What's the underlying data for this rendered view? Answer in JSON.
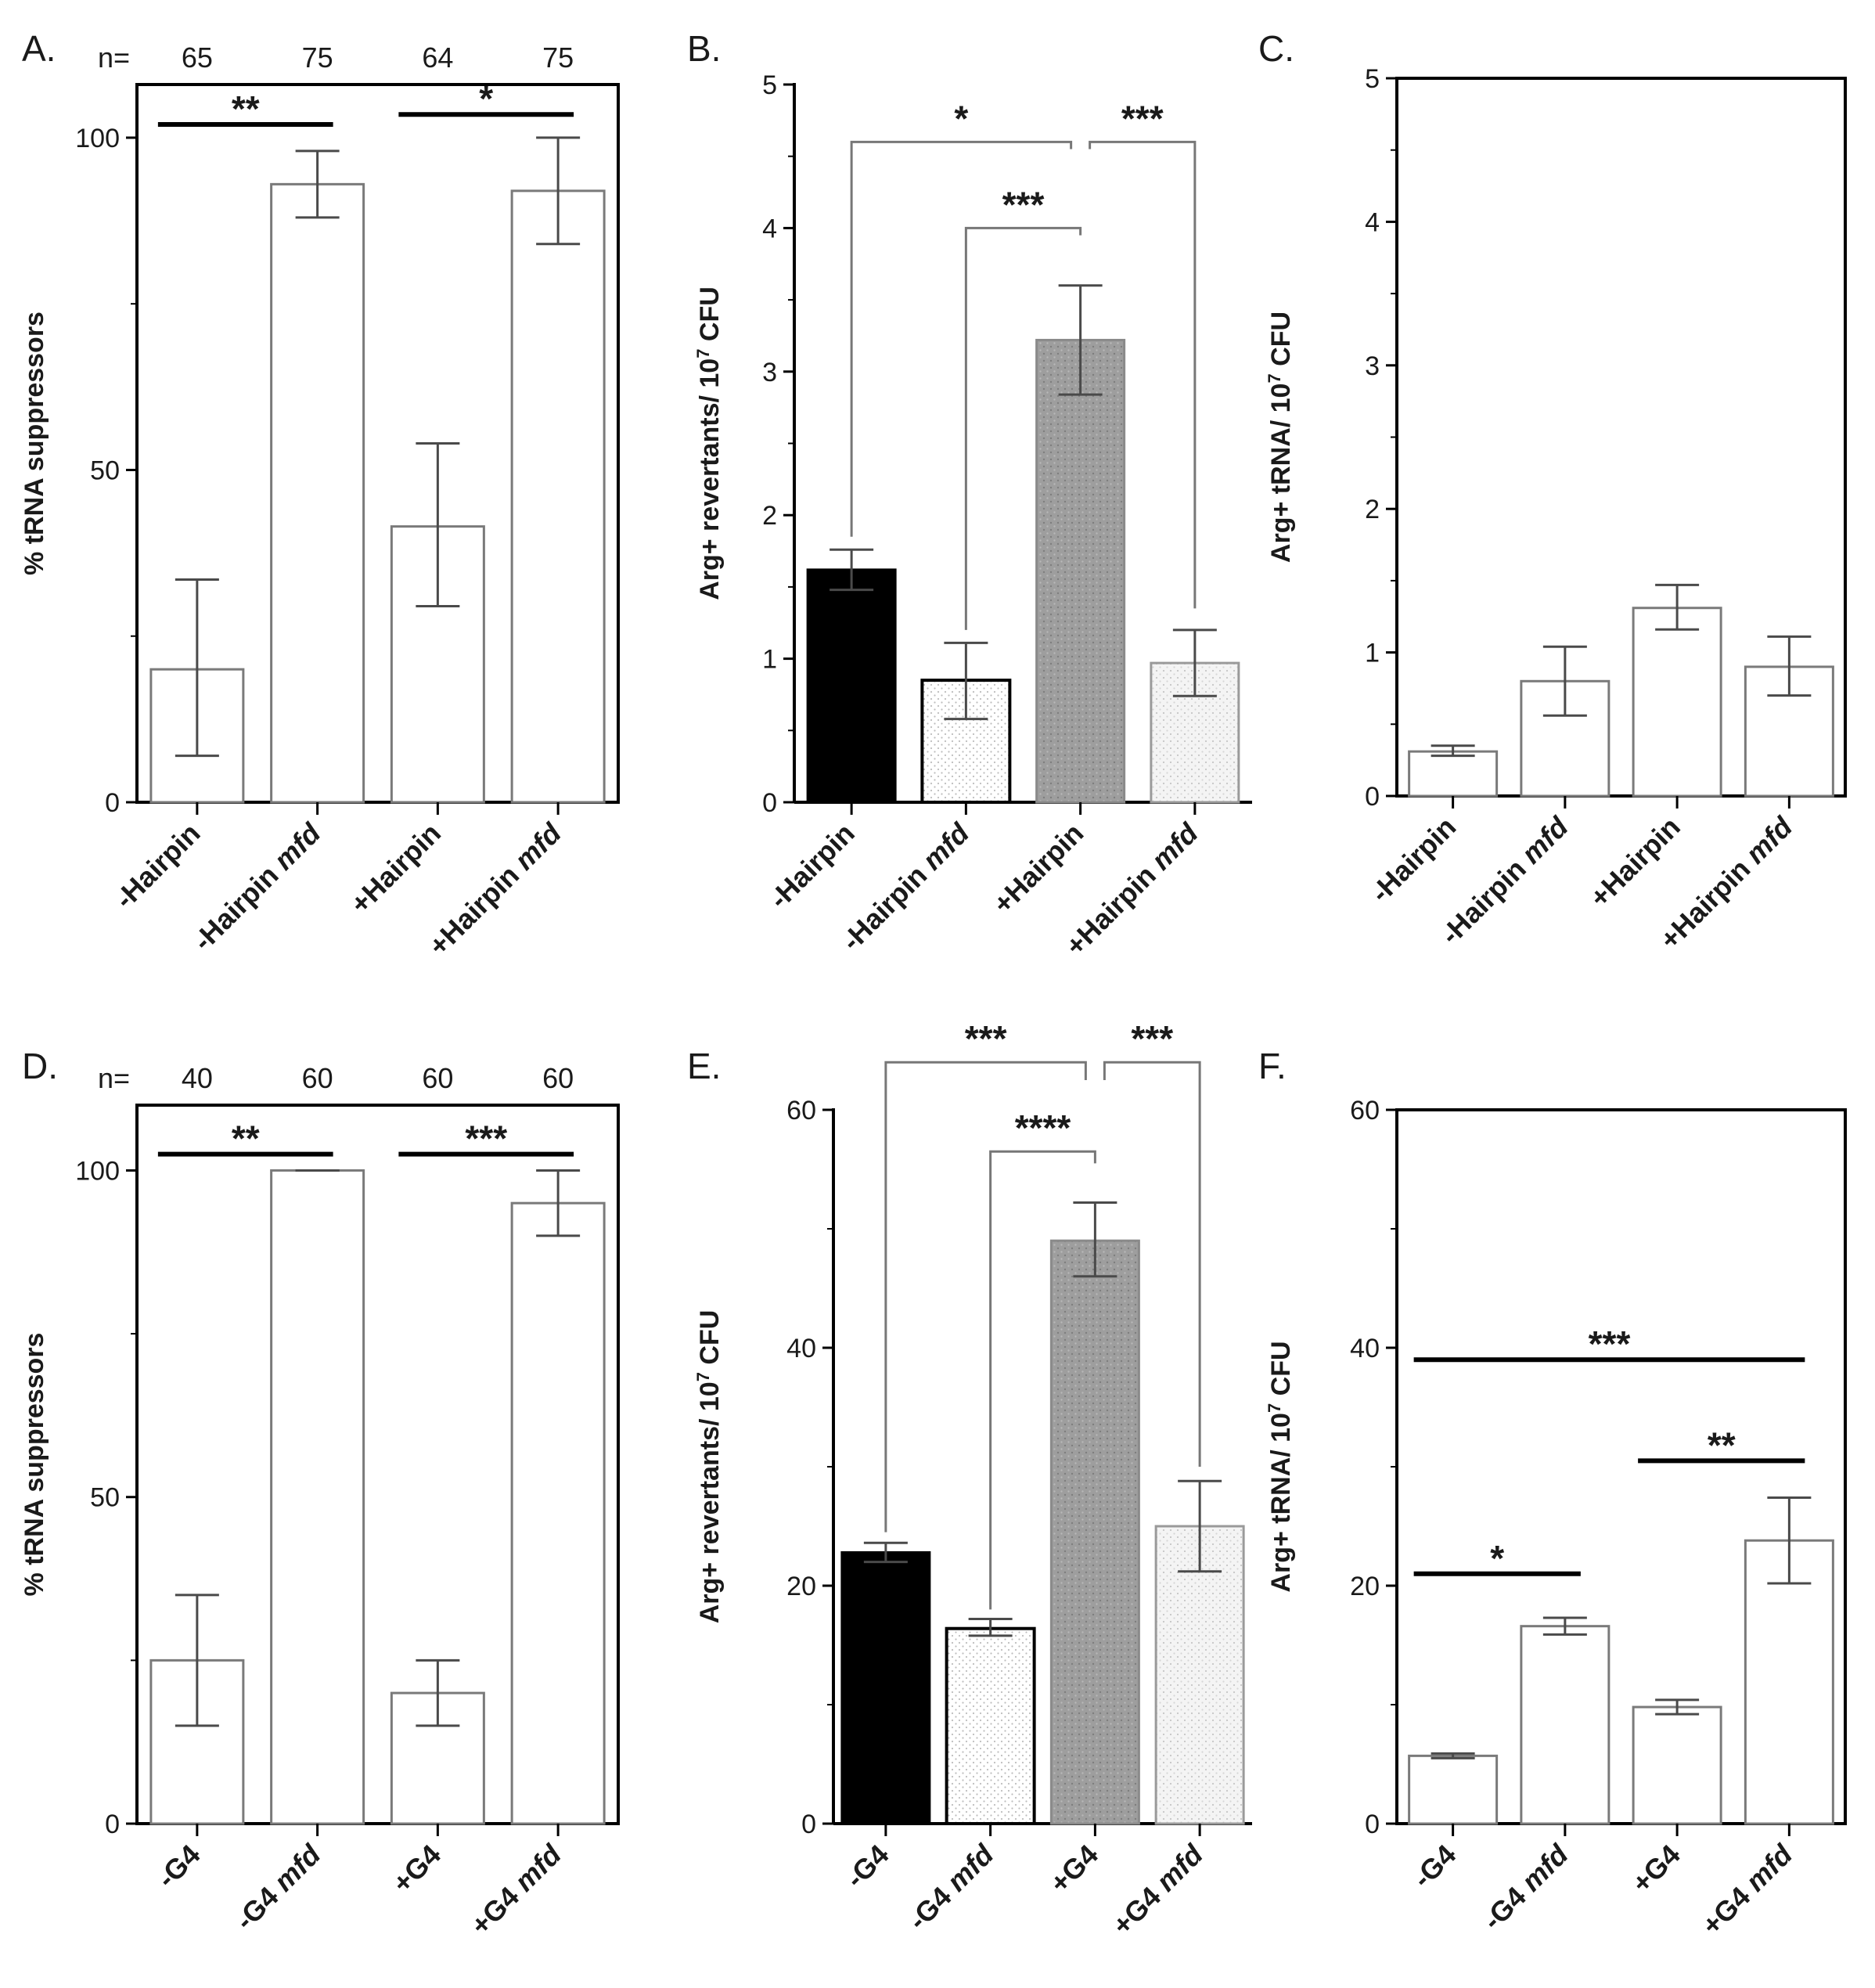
{
  "chart_data": [
    {
      "panel": "A.",
      "type": "bar",
      "categories": [
        {
          "parts": [
            {
              "text": "-Hairpin",
              "italic": false
            }
          ]
        },
        {
          "parts": [
            {
              "text": "-Hairpin ",
              "italic": false
            },
            {
              "text": "mfd",
              "italic": true
            }
          ]
        },
        {
          "parts": [
            {
              "text": "+Hairpin",
              "italic": false
            }
          ]
        },
        {
          "parts": [
            {
              "text": "+Hairpin ",
              "italic": false
            },
            {
              "text": "mfd",
              "italic": true
            }
          ]
        }
      ],
      "values": [
        20,
        93,
        41.5,
        92
      ],
      "errors": [
        [
          7,
          33.5
        ],
        [
          88,
          98
        ],
        [
          29.5,
          54
        ],
        [
          84,
          100
        ]
      ],
      "fills": [
        "white",
        "white",
        "white",
        "white"
      ],
      "n_prefix": "n=",
      "n_values": [
        "65",
        "75",
        "64",
        "75"
      ],
      "ylabel": "% tRNA suppressors",
      "ylim": [
        0,
        108
      ],
      "yticks": [
        0,
        50,
        100
      ],
      "frame": "box",
      "significance": [
        {
          "from": 0,
          "to": 1,
          "y": 102,
          "label": "**",
          "style": "line"
        },
        {
          "from": 2,
          "to": 3,
          "y": 103.5,
          "label": "*",
          "style": "line"
        }
      ]
    },
    {
      "panel": "B.",
      "type": "bar",
      "categories": [
        {
          "parts": [
            {
              "text": "-Hairpin",
              "italic": false
            }
          ]
        },
        {
          "parts": [
            {
              "text": "-Hairpin ",
              "italic": false
            },
            {
              "text": "mfd",
              "italic": true
            }
          ]
        },
        {
          "parts": [
            {
              "text": "+Hairpin",
              "italic": false
            }
          ]
        },
        {
          "parts": [
            {
              "text": "+Hairpin ",
              "italic": false
            },
            {
              "text": "mfd",
              "italic": true
            }
          ]
        }
      ],
      "values": [
        1.62,
        0.85,
        3.22,
        0.97
      ],
      "errors": [
        [
          1.48,
          1.76
        ],
        [
          0.58,
          1.11
        ],
        [
          2.84,
          3.6
        ],
        [
          0.74,
          1.2
        ]
      ],
      "fills": [
        "black",
        "dotted-white",
        "gray",
        "dotted-light"
      ],
      "ylabel_parts": [
        {
          "text": "Arg+ revertants/ 10"
        },
        {
          "text": "7",
          "sup": true
        },
        {
          "text": " CFU"
        }
      ],
      "ylim": [
        0,
        5
      ],
      "yticks": [
        0,
        1,
        2,
        3,
        4,
        5
      ],
      "frame": "axes",
      "significance": [
        {
          "from": 0,
          "to": 2,
          "y": 4.6,
          "label": "*",
          "style": "bracket",
          "leg_ends": [
            1.85,
            4.55
          ]
        },
        {
          "from": 1,
          "to": 2,
          "y": 4.0,
          "label": "***",
          "style": "bracket",
          "leg_ends": [
            1.2,
            3.95
          ]
        },
        {
          "from": 2,
          "to": 3,
          "y": 4.6,
          "label": "***",
          "style": "bracket",
          "leg_ends": [
            4.55,
            1.35
          ]
        }
      ]
    },
    {
      "panel": "C.",
      "type": "bar",
      "categories": [
        {
          "parts": [
            {
              "text": "-Hairpin",
              "italic": false
            }
          ]
        },
        {
          "parts": [
            {
              "text": "-Hairpin ",
              "italic": false
            },
            {
              "text": "mfd",
              "italic": true
            }
          ]
        },
        {
          "parts": [
            {
              "text": "+Hairpin",
              "italic": false
            }
          ]
        },
        {
          "parts": [
            {
              "text": "+Hairpin ",
              "italic": false
            },
            {
              "text": "mfd",
              "italic": true
            }
          ]
        }
      ],
      "values": [
        0.31,
        0.8,
        1.31,
        0.9
      ],
      "errors": [
        [
          0.28,
          0.35
        ],
        [
          0.56,
          1.04
        ],
        [
          1.16,
          1.47
        ],
        [
          0.7,
          1.11
        ]
      ],
      "fills": [
        "white",
        "white",
        "white",
        "white"
      ],
      "ylabel_parts": [
        {
          "text": "Arg+ tRNA/ 10"
        },
        {
          "text": "7",
          "sup": true
        },
        {
          "text": " CFU"
        }
      ],
      "ylim": [
        0,
        5
      ],
      "yticks": [
        0,
        1,
        2,
        3,
        4,
        5
      ],
      "frame": "box",
      "significance": []
    },
    {
      "panel": "D.",
      "type": "bar",
      "categories": [
        {
          "parts": [
            {
              "text": "-G4",
              "italic": false
            }
          ]
        },
        {
          "parts": [
            {
              "text": "-G4 ",
              "italic": false
            },
            {
              "text": "mfd",
              "italic": true
            }
          ]
        },
        {
          "parts": [
            {
              "text": "+G4",
              "italic": false
            }
          ]
        },
        {
          "parts": [
            {
              "text": "+G4 ",
              "italic": false
            },
            {
              "text": "mfd",
              "italic": true
            }
          ]
        }
      ],
      "values": [
        25,
        100,
        20,
        95
      ],
      "errors": [
        [
          15,
          35
        ],
        [
          100,
          100
        ],
        [
          15,
          25
        ],
        [
          90,
          100
        ]
      ],
      "fills": [
        "white",
        "white",
        "white",
        "white"
      ],
      "n_prefix": "n=",
      "n_values": [
        "40",
        "60",
        "60",
        "60"
      ],
      "ylabel": "% tRNA suppressors",
      "ylim": [
        0,
        110
      ],
      "yticks": [
        0,
        50,
        100
      ],
      "frame": "box",
      "significance": [
        {
          "from": 0,
          "to": 1,
          "y": 102.5,
          "label": "**",
          "style": "line"
        },
        {
          "from": 2,
          "to": 3,
          "y": 102.5,
          "label": "***",
          "style": "line"
        }
      ]
    },
    {
      "panel": "E.",
      "type": "bar",
      "categories": [
        {
          "parts": [
            {
              "text": "-G4",
              "italic": false
            }
          ]
        },
        {
          "parts": [
            {
              "text": "-G4 ",
              "italic": false
            },
            {
              "text": "mfd",
              "italic": true
            }
          ]
        },
        {
          "parts": [
            {
              "text": "+G4",
              "italic": false
            }
          ]
        },
        {
          "parts": [
            {
              "text": "+G4 ",
              "italic": false
            },
            {
              "text": "mfd",
              "italic": true
            }
          ]
        }
      ],
      "values": [
        22.8,
        16.4,
        49,
        25
      ],
      "errors": [
        [
          22,
          23.6
        ],
        [
          15.8,
          17.2
        ],
        [
          46,
          52.2
        ],
        [
          21.2,
          28.8
        ]
      ],
      "fills": [
        "black",
        "dotted-white",
        "gray",
        "dotted-light"
      ],
      "ylabel_parts": [
        {
          "text": "Arg+ revertants/ 10"
        },
        {
          "text": "7",
          "sup": true
        },
        {
          "text": " CFU"
        }
      ],
      "ylim": [
        0,
        60
      ],
      "yticks": [
        0,
        20,
        40,
        60
      ],
      "frame": "axes",
      "significance": [
        {
          "from": 0,
          "to": 2,
          "y": 64,
          "label": "***",
          "style": "bracket",
          "leg_ends": [
            24.5,
            62.5
          ]
        },
        {
          "from": 1,
          "to": 2,
          "y": 56.5,
          "label": "****",
          "style": "bracket",
          "leg_ends": [
            18,
            55.5
          ]
        },
        {
          "from": 2,
          "to": 3,
          "y": 64,
          "label": "***",
          "style": "bracket",
          "leg_ends": [
            62.5,
            30
          ]
        }
      ]
    },
    {
      "panel": "F.",
      "type": "bar",
      "categories": [
        {
          "parts": [
            {
              "text": "-G4",
              "italic": false
            }
          ]
        },
        {
          "parts": [
            {
              "text": "-G4 ",
              "italic": false
            },
            {
              "text": "mfd",
              "italic": true
            }
          ]
        },
        {
          "parts": [
            {
              "text": "+G4",
              "italic": false
            }
          ]
        },
        {
          "parts": [
            {
              "text": "+G4 ",
              "italic": false
            },
            {
              "text": "mfd",
              "italic": true
            }
          ]
        }
      ],
      "values": [
        5.7,
        16.6,
        9.8,
        23.8
      ],
      "errors": [
        [
          5.5,
          5.9
        ],
        [
          15.9,
          17.3
        ],
        [
          9.2,
          10.4
        ],
        [
          20.2,
          27.4
        ]
      ],
      "fills": [
        "white",
        "white",
        "white",
        "white"
      ],
      "ylabel_parts": [
        {
          "text": "Arg+ tRNA/ 10"
        },
        {
          "text": "7",
          "sup": true
        },
        {
          "text": " CFU"
        }
      ],
      "ylim": [
        0,
        60
      ],
      "yticks": [
        0,
        20,
        40,
        60
      ],
      "frame": "box",
      "significance": [
        {
          "from": 0,
          "to": 3,
          "y": 39,
          "label": "***",
          "style": "line"
        },
        {
          "from": 2,
          "to": 3,
          "y": 30.5,
          "label": "**",
          "style": "line"
        },
        {
          "from": 0,
          "to": 1,
          "y": 21,
          "label": "*",
          "style": "line"
        }
      ]
    }
  ]
}
